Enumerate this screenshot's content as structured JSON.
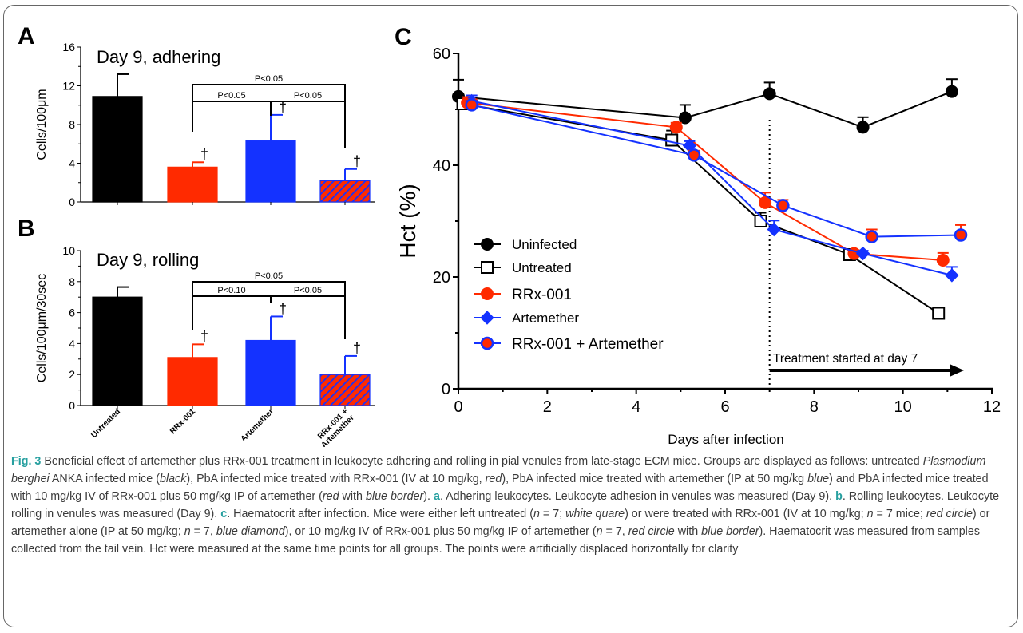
{
  "colors": {
    "black": "#000000",
    "red": "#ff2a00",
    "blue": "#1432ff",
    "caption_accent": "#27a0a0",
    "caption_text": "#3a3a3a"
  },
  "panels": {
    "A": {
      "letter": "A",
      "title": "Day 9, adhering"
    },
    "B": {
      "letter": "B",
      "title": "Day 9, rolling"
    },
    "C": {
      "letter": "C"
    }
  },
  "chart_data": [
    {
      "panel": "A",
      "type": "bar",
      "title": "Day 9, adhering",
      "ylabel": "Cells/100μm",
      "ylim": [
        0,
        16
      ],
      "yticks": [
        0,
        4,
        8,
        12,
        16
      ],
      "categories": [
        "Untreated",
        "RRx-001",
        "Artemether",
        "RRx-001 + Artemether"
      ],
      "values": [
        10.9,
        3.6,
        6.3,
        2.2
      ],
      "errors": [
        2.3,
        0.5,
        2.7,
        1.2
      ],
      "bar_colors": [
        "black",
        "red",
        "blue",
        "red-blue-hatched"
      ],
      "dagger_markers": [
        "",
        "†",
        "†",
        "†"
      ],
      "significance": [
        {
          "from": 1,
          "to": 2,
          "label": "P<0.05"
        },
        {
          "from": 2,
          "to": 3,
          "label": "P<0.05"
        },
        {
          "from": 1,
          "to": 3,
          "label": "P<0.05"
        }
      ]
    },
    {
      "panel": "B",
      "type": "bar",
      "title": "Day 9, rolling",
      "ylabel": "Cells/100μm/30sec",
      "ylim": [
        0,
        10
      ],
      "yticks": [
        0,
        2,
        4,
        6,
        8,
        10
      ],
      "categories": [
        "Untreated",
        "RRx-001",
        "Artemether",
        "RRx-001 + Artemether"
      ],
      "category_labels": [
        "Untreated",
        "RRx-001",
        "Artemether",
        "RRx-001 +\nArtemether"
      ],
      "values": [
        7.0,
        3.1,
        4.2,
        2.0
      ],
      "errors": [
        0.65,
        0.85,
        1.55,
        1.2
      ],
      "bar_colors": [
        "black",
        "red",
        "blue",
        "red-blue-hatched"
      ],
      "dagger_markers": [
        "",
        "†",
        "†",
        "†"
      ],
      "significance": [
        {
          "from": 1,
          "to": 2,
          "label": "P<0.10"
        },
        {
          "from": 2,
          "to": 3,
          "label": "P<0.05"
        },
        {
          "from": 1,
          "to": 3,
          "label": "P<0.05"
        }
      ]
    },
    {
      "panel": "C",
      "type": "line",
      "xlabel": "Days after infection",
      "ylabel": "Hct (%)",
      "xlim": [
        0,
        12
      ],
      "ylim": [
        0,
        60
      ],
      "xticks": [
        0,
        2,
        4,
        6,
        8,
        10,
        12
      ],
      "yticks": [
        0,
        20,
        40,
        60
      ],
      "legend_position": "center-left",
      "series": [
        {
          "name": "Uninfected",
          "marker": "filled-circle",
          "color": "black",
          "x": [
            0,
            5.1,
            7,
            9.1,
            11.1
          ],
          "y": [
            52.3,
            48.5,
            52.8,
            46.8,
            53.2
          ],
          "err": [
            3,
            2.3,
            2,
            1.8,
            2.2
          ]
        },
        {
          "name": "Untreated",
          "marker": "open-square",
          "color": "black",
          "x": [
            0.1,
            4.8,
            6.8,
            8.8,
            10.8
          ],
          "y": [
            51,
            44.5,
            30,
            24,
            13.5
          ],
          "err": [
            1,
            1.7,
            1.5,
            0.5,
            0.5
          ]
        },
        {
          "name": "RRx-001",
          "marker": "filled-circle",
          "color": "red",
          "x": [
            0.2,
            4.9,
            6.9,
            8.9,
            10.9
          ],
          "y": [
            51.2,
            46.8,
            33.3,
            24.2,
            23
          ],
          "err": [
            1,
            0.8,
            1.8,
            0.6,
            1.3
          ]
        },
        {
          "name": "Artemether",
          "marker": "diamond",
          "color": "blue",
          "x": [
            0.3,
            5.2,
            7.1,
            9.1,
            11.1
          ],
          "y": [
            51.5,
            43.5,
            28.5,
            24.2,
            20.3
          ],
          "err": [
            1,
            0.8,
            1.6,
            0.5,
            1.5
          ]
        },
        {
          "name": "RRx-001 + Artemether",
          "marker": "red-circle-blue-border",
          "color": "red",
          "x": [
            0.3,
            5.3,
            7.3,
            9.3,
            11.3
          ],
          "y": [
            50.8,
            41.8,
            32.8,
            27.2,
            27.5
          ],
          "err": [
            1,
            0.8,
            1,
            1.3,
            1.8
          ]
        }
      ],
      "annotation": {
        "text": "Treatment started at day 7",
        "x_start": 7,
        "x_end": 11.3,
        "vline_x": 7
      }
    }
  ],
  "caption": {
    "fig_label": "Fig. 3",
    "text_intro": " Beneficial effect of artemether plus RRx-001 treatment in leukocyte adhering and rolling in pial venules from late-stage ECM mice. Groups are displayed as follows: untreated ",
    "italic_species": "Plasmodium berghei",
    "text_groups_1": " ANKA infected mice (",
    "i_black": "black",
    "text_groups_2": "), PbA infected mice treated with RRx-001 (IV at 10 mg/kg, ",
    "i_red": "red",
    "text_groups_3": "), PbA infected mice treated with artemether (IP at 50 mg/kg ",
    "i_blue": "blue",
    "text_groups_4": ") and PbA infected mice treated with 10 mg/kg IV of RRx-001 plus 50 mg/kg IP of artemether (",
    "i_red2": "red",
    "text_groups_5": " with ",
    "i_blue_border": "blue border",
    "text_groups_6": "). ",
    "a_letter": "a",
    "text_a": ". Adhering leukocytes. Leukocyte adhesion in venules was measured (Day 9). ",
    "b_letter": "b",
    "text_b": ". Rolling leukocytes. Leukocyte rolling in venules was measured (Day 9). ",
    "c_letter": "c",
    "text_c1": ". Haematocrit after infection. Mice were either left untreated (",
    "i_n1": "n",
    "text_c2": " = 7; ",
    "i_white_square": "white quare",
    "text_c3": ") or were treated with RRx-001 (IV at 10 mg/kg; ",
    "i_n2": "n",
    "text_c4": " = 7 mice; ",
    "i_red_circle": "red circle",
    "text_c5": ") or artemether alone (IP at 50 mg/kg; ",
    "i_n3": "n",
    "text_c6": " = 7, ",
    "i_blue_diamond": "blue diamond",
    "text_c7": "), or 10 mg/kg IV of RRx-001 plus 50 mg/kg IP of artemether (",
    "i_n4": "n",
    "text_c8": " = 7, ",
    "i_red_circle2": "red circle",
    "text_c9": " with ",
    "i_blue_border2": "blue border",
    "text_c10": "). Haematocrit was measured from samples collected from the tail vein. Hct were measured at the same time points for all groups. The points were artificially displaced horizontally for clarity"
  }
}
